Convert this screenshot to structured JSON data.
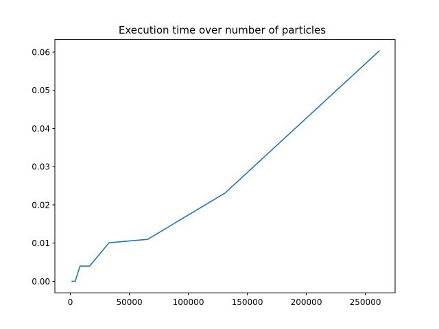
{
  "chart_data": {
    "type": "line",
    "title": "Execution time over number of particles",
    "xlabel": "",
    "ylabel": "",
    "xlim": [
      -13107,
      275251
    ],
    "ylim": [
      -0.003,
      0.0633
    ],
    "xticks": [
      0,
      50000,
      100000,
      150000,
      200000,
      250000
    ],
    "xtick_labels": [
      "0",
      "50000",
      "100000",
      "150000",
      "200000",
      "250000"
    ],
    "yticks": [
      0.0,
      0.01,
      0.02,
      0.03,
      0.04,
      0.05,
      0.06
    ],
    "ytick_labels": [
      "0.00",
      "0.01",
      "0.02",
      "0.03",
      "0.04",
      "0.05",
      "0.06"
    ],
    "grid": false,
    "legend": "none",
    "series": [
      {
        "color": "#1f77b4",
        "x": [
          1024,
          2048,
          4096,
          8192,
          16384,
          32768,
          65536,
          131072,
          262144
        ],
        "y": [
          0.0,
          0.0,
          0.0,
          0.004,
          0.004,
          0.0101,
          0.011,
          0.0231,
          0.0604
        ]
      }
    ]
  }
}
